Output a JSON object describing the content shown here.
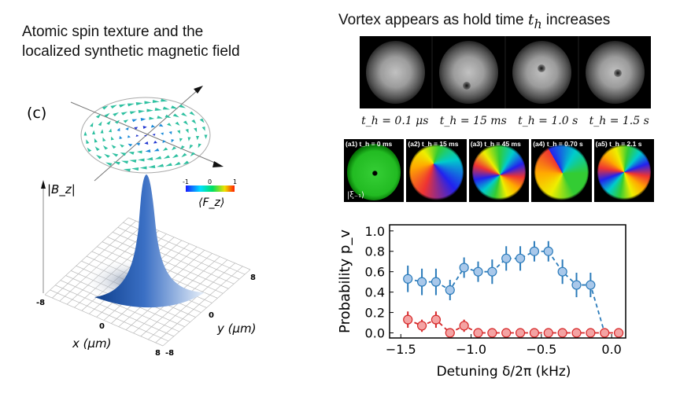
{
  "left_title": {
    "line1": "Atomic spin texture and the",
    "line2": "localized synthetic magnetic field"
  },
  "right_title": {
    "text": "Vortex appears as hold time ",
    "var": "t",
    "sub": "h",
    "suffix": " increases"
  },
  "panel_c": {
    "label": "(c)",
    "z_axis_label": "|B_z|",
    "x_axis_label": "x (μm)",
    "y_axis_label": "y (μm)",
    "x_ticks": [
      "-8",
      "0",
      "8"
    ],
    "y_ticks": [
      "-8",
      "0",
      "8"
    ],
    "colorbar": {
      "ticks": [
        "-1",
        "0",
        "1"
      ],
      "label": "⟨F_z⟩",
      "colors": [
        "#1a1aff",
        "#00e0ff",
        "#00e060",
        "#f0e000",
        "#ff2000"
      ]
    },
    "surface_color": "#3a6fc4"
  },
  "gray_images": [
    {
      "label": "t_h = 0.1 μs",
      "vortex": false
    },
    {
      "label": "t_h = 15 ms",
      "vortex": true
    },
    {
      "label": "t_h = 1.0 s",
      "vortex": true
    },
    {
      "label": "t_h = 1.5 s",
      "vortex": true
    }
  ],
  "color_images": [
    {
      "label": "(a1)  t_h = 0 ms",
      "ket": "|ξ₋₁⟩"
    },
    {
      "label": "(a2) t_h = 15 ms"
    },
    {
      "label": "(a3)  t_h = 45 ms"
    },
    {
      "label": "(a4) t_h = 0.70 s"
    },
    {
      "label": "(a5)  t_h = 2.1 s"
    }
  ],
  "chart_data": {
    "type": "line",
    "xlabel": "Detuning δ/2π (kHz)",
    "ylabel": "Probability p_v",
    "xlim": [
      -1.58,
      0.1
    ],
    "ylim": [
      -0.05,
      1.06
    ],
    "xticks": [
      -1.5,
      -1.0,
      -0.5,
      0.0
    ],
    "xtick_labels": [
      "−1.5",
      "−1.0",
      "−0.5",
      "0.0"
    ],
    "yticks": [
      0.0,
      0.2,
      0.4,
      0.6,
      0.8,
      1.0
    ],
    "ytick_labels": [
      "0.0",
      "0.2",
      "0.4",
      "0.6",
      "0.8",
      "1.0"
    ],
    "grid": false,
    "series": [
      {
        "color": "#2b7bba",
        "fill": "#a9c8ea",
        "x": [
          -1.45,
          -1.35,
          -1.25,
          -1.15,
          -1.05,
          -0.95,
          -0.85,
          -0.75,
          -0.65,
          -0.55,
          -0.45,
          -0.35,
          -0.25,
          -0.15,
          -0.05
        ],
        "y": [
          0.53,
          0.5,
          0.5,
          0.42,
          0.64,
          0.6,
          0.6,
          0.73,
          0.73,
          0.8,
          0.8,
          0.6,
          0.47,
          0.47,
          0.0
        ],
        "err": [
          0.13,
          0.13,
          0.13,
          0.1,
          0.1,
          0.1,
          0.12,
          0.12,
          0.12,
          0.1,
          0.1,
          0.12,
          0.12,
          0.12,
          0.0
        ],
        "markers": [
          true,
          true,
          true,
          true,
          true,
          true,
          true,
          true,
          true,
          true,
          true,
          true,
          true,
          true,
          false
        ]
      },
      {
        "color": "#d62728",
        "fill": "#f4a3a3",
        "x": [
          -1.45,
          -1.35,
          -1.25,
          -1.15,
          -1.05,
          -0.95,
          -0.85,
          -0.75,
          -0.65,
          -0.55,
          -0.45,
          -0.35,
          -0.25,
          -0.15,
          -0.05,
          0.05
        ],
        "y": [
          0.13,
          0.07,
          0.13,
          0.0,
          0.07,
          0.0,
          0.0,
          0.0,
          0.0,
          0.0,
          0.0,
          0.0,
          0.0,
          0.0,
          0.0,
          0.0
        ],
        "err": [
          0.08,
          0.06,
          0.08,
          0.0,
          0.06,
          0,
          0,
          0,
          0,
          0,
          0,
          0,
          0,
          0,
          0,
          0
        ]
      }
    ]
  }
}
